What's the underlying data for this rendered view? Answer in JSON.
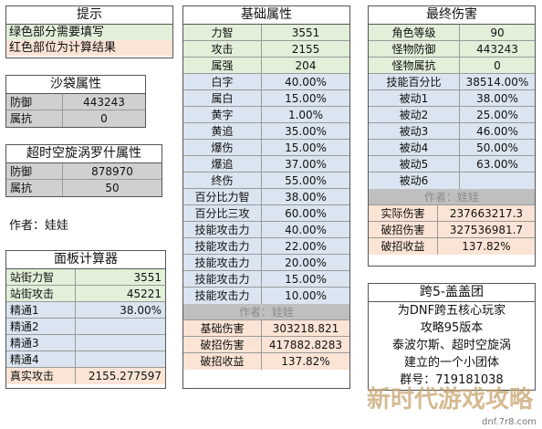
{
  "tips": {
    "title": "提示",
    "line1": "绿色部分需要填写",
    "line2": "红色部位为计算结果"
  },
  "sandbag": {
    "title": "沙袋属性",
    "rows": [
      {
        "label": "防御",
        "value": "443243"
      },
      {
        "label": "属抗",
        "value": "0"
      }
    ]
  },
  "boss": {
    "title": "超时空旋涡罗什属性",
    "rows": [
      {
        "label": "防御",
        "value": "878970"
      },
      {
        "label": "属抗",
        "value": "50"
      }
    ]
  },
  "author_left": "作者：娃娃",
  "panel_calc": {
    "title": "面板计算器",
    "rows": [
      {
        "label": "站街力智",
        "value": "3551"
      },
      {
        "label": "站街攻击",
        "value": "45221"
      },
      {
        "label": "精通1",
        "value": "38.00%"
      },
      {
        "label": "精通2",
        "value": ""
      },
      {
        "label": "精通3",
        "value": ""
      },
      {
        "label": "精通4",
        "value": ""
      },
      {
        "label": "真实攻击",
        "value": "2155.277597"
      }
    ]
  },
  "base": {
    "title": "基础属性",
    "rows": [
      {
        "label": "力智",
        "value": "3551"
      },
      {
        "label": "攻击",
        "value": "2155"
      },
      {
        "label": "属强",
        "value": "204"
      },
      {
        "label": "白字",
        "value": "40.00%"
      },
      {
        "label": "属白",
        "value": "15.00%"
      },
      {
        "label": "黄字",
        "value": "1.00%"
      },
      {
        "label": "黄追",
        "value": "35.00%"
      },
      {
        "label": "爆伤",
        "value": "15.00%"
      },
      {
        "label": "爆追",
        "value": "37.00%"
      },
      {
        "label": "终伤",
        "value": "55.00%"
      },
      {
        "label": "百分比力智",
        "value": "38.00%"
      },
      {
        "label": "百分比三攻",
        "value": "60.00%"
      },
      {
        "label": "技能攻击力",
        "value": "40.00%"
      },
      {
        "label": "技能攻击力",
        "value": "22.00%"
      },
      {
        "label": "技能攻击力",
        "value": "20.00%"
      },
      {
        "label": "技能攻击力",
        "value": "15.00%"
      },
      {
        "label": "技能攻击力",
        "value": "10.00%"
      }
    ],
    "author": "作者：娃娃",
    "results": [
      {
        "label": "基础伤害",
        "value": "303218.821"
      },
      {
        "label": "破招伤害",
        "value": "417882.8283"
      },
      {
        "label": "破招收益",
        "value": "137.82%"
      }
    ]
  },
  "final": {
    "title": "最终伤害",
    "rows": [
      {
        "label": "角色等级",
        "value": "90"
      },
      {
        "label": "怪物防御",
        "value": "443243"
      },
      {
        "label": "怪物属抗",
        "value": "0"
      },
      {
        "label": "技能百分比",
        "value": "38514.00%"
      },
      {
        "label": "被动1",
        "value": "38.00%"
      },
      {
        "label": "被动2",
        "value": "25.00%"
      },
      {
        "label": "被动3",
        "value": "46.00%"
      },
      {
        "label": "被动4",
        "value": "50.00%"
      },
      {
        "label": "被动5",
        "value": "63.00%"
      },
      {
        "label": "被动6",
        "value": ""
      }
    ],
    "author": "作者：娃娃",
    "results": [
      {
        "label": "实际伤害",
        "value": "237663217.3"
      },
      {
        "label": "破招伤害",
        "value": "327536981.7"
      },
      {
        "label": "破招收益",
        "value": "137.82%"
      }
    ]
  },
  "group": {
    "title": "跨5-盖盖团",
    "lines": [
      "为DNF跨五核心玩家",
      "攻略95版本",
      "泰波尔斯、超时空旋涡",
      "建立的一个小团体",
      "群号：719181038"
    ]
  },
  "watermark": {
    "big": "新时代游戏攻略",
    "small": "dnf.7r8.com"
  }
}
